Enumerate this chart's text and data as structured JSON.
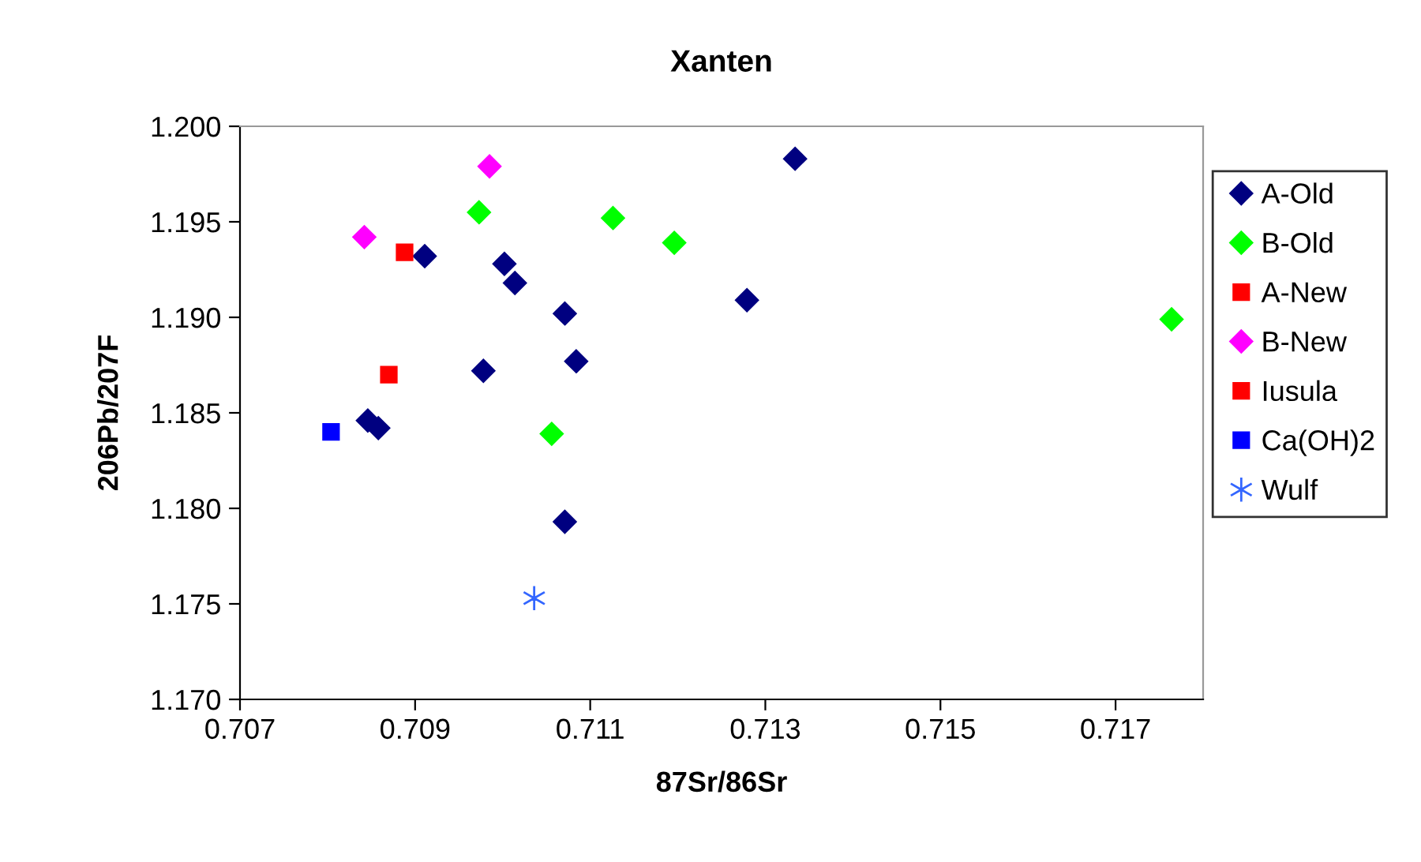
{
  "chart_data": {
    "type": "scatter",
    "title": "Xanten",
    "xlabel": "87Sr/86Sr",
    "ylabel": "206Pb/207F",
    "xlim": [
      0.707,
      0.718
    ],
    "xticks": [
      0.707,
      0.709,
      0.711,
      0.713,
      0.715,
      0.717
    ],
    "ylim": [
      1.17,
      1.2
    ],
    "yticks": [
      {
        "value": 1.17,
        "label": "1.170"
      },
      {
        "value": 1.175,
        "label": "1.175"
      },
      {
        "value": 1.18,
        "label": "1.180"
      },
      {
        "value": 1.185,
        "label": "1.185"
      },
      {
        "value": 1.19,
        "label": "1.190"
      },
      {
        "value": 1.195,
        "label": "1.195"
      },
      {
        "value": 1.2,
        "label": "1.200"
      }
    ],
    "grid": false,
    "legend": "right",
    "series": [
      {
        "name": "A-Old",
        "color": "#000080",
        "marker": "diamond",
        "x": [
          0.70911,
          0.71002,
          0.71014,
          0.71071,
          0.71084,
          0.70978,
          0.70846,
          0.70858,
          0.71071,
          0.71334,
          0.71279
        ],
        "values": [
          1.1932,
          1.1928,
          1.1918,
          1.1902,
          1.1877,
          1.1872,
          1.1846,
          1.1842,
          1.1793,
          1.1983,
          1.1909
        ]
      },
      {
        "name": "B-Old",
        "color": "#00ff00",
        "marker": "diamond",
        "x": [
          0.70973,
          0.71126,
          0.71196,
          0.71056,
          0.71764
        ],
        "values": [
          1.1955,
          1.1952,
          1.1939,
          1.1839,
          1.1899
        ]
      },
      {
        "name": "A-New",
        "color": "#ff0000",
        "marker": "square",
        "x": [
          0.70888
        ],
        "values": [
          1.1934
        ]
      },
      {
        "name": "B-New",
        "color": "#ff00ff",
        "marker": "diamond",
        "x": [
          0.70985,
          0.70842
        ],
        "values": [
          1.1979,
          1.1942
        ]
      },
      {
        "name": "Iusula",
        "color": "#ff0000",
        "marker": "square",
        "x": [
          0.7087
        ],
        "values": [
          1.187
        ]
      },
      {
        "name": "Ca(OH)2",
        "color": "#0000ff",
        "marker": "square",
        "x": [
          0.70804
        ],
        "values": [
          1.184
        ]
      },
      {
        "name": "Wulf",
        "color": "#3366ff",
        "marker": "cross",
        "x": [
          0.71036
        ],
        "values": [
          1.1753
        ]
      }
    ]
  }
}
